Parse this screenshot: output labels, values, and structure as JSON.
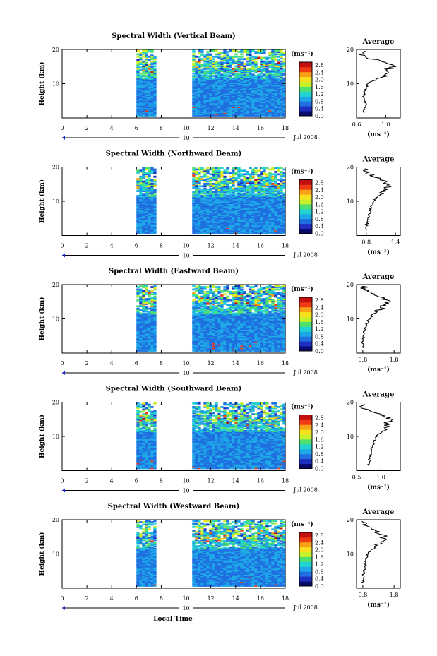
{
  "xlabel": "Local Time",
  "date_label": "Jul 2008",
  "day_label": "10",
  "x_ticks": [
    "0",
    "2",
    "4",
    "6",
    "8",
    "10",
    "12",
    "14",
    "16",
    "18"
  ],
  "y_ticks": [
    "10",
    "20"
  ],
  "ylabel": "Height (km)",
  "colorbar": {
    "unit": "(ms⁻¹)",
    "ticks": [
      "2.8",
      "2.4",
      "2.0",
      "1.6",
      "1.2",
      "0.8",
      "0.4",
      "0.0"
    ],
    "colors": [
      "#0a0a6e",
      "#1e2fbf",
      "#1f6fe0",
      "#1ea8e8",
      "#22d3d0",
      "#4fe070",
      "#c8f02a",
      "#f7e11e",
      "#f8a117",
      "#ee3b14",
      "#c40f0f"
    ]
  },
  "avg_title": "Average",
  "avg_xlabel": "(ms⁻¹)",
  "chart_data": [
    {
      "type": "heatmap",
      "title": "Spectral Width (Vertical Beam)",
      "xlim": [
        0,
        18
      ],
      "ylim": [
        0,
        20
      ],
      "data_segments": [
        [
          6.0,
          7.4
        ],
        [
          10.5,
          18.0
        ]
      ],
      "avg_profile": {
        "xlim": [
          0.6,
          1.2
        ],
        "ticks": [
          "0.6",
          "1.0"
        ],
        "heights": [
          2,
          4,
          6,
          8,
          10,
          11,
          12,
          13,
          14,
          15,
          16,
          17,
          18,
          19
        ],
        "values": [
          0.7,
          0.72,
          0.7,
          0.72,
          0.75,
          0.85,
          0.95,
          1.05,
          1.02,
          1.1,
          1.0,
          0.85,
          0.7,
          0.68
        ]
      }
    },
    {
      "type": "heatmap",
      "title": "Spectral Width (Northward Beam)",
      "xlim": [
        0,
        18
      ],
      "ylim": [
        0,
        20
      ],
      "data_segments": [
        [
          6.0,
          7.4
        ],
        [
          10.5,
          18.0
        ]
      ],
      "avg_profile": {
        "xlim": [
          0.6,
          1.5
        ],
        "ticks": [
          "0.8",
          "1.4"
        ],
        "heights": [
          2,
          4,
          6,
          8,
          10,
          11,
          12,
          13,
          14,
          15,
          16,
          17,
          18,
          19
        ],
        "values": [
          0.8,
          0.82,
          0.85,
          0.9,
          0.95,
          1.0,
          1.1,
          1.2,
          1.25,
          1.2,
          1.15,
          1.0,
          0.85,
          0.8
        ]
      }
    },
    {
      "type": "heatmap",
      "title": "Spectral Width (Eastward Beam)",
      "xlim": [
        0,
        18
      ],
      "ylim": [
        0,
        20
      ],
      "data_segments": [
        [
          6.0,
          7.4
        ],
        [
          10.5,
          18.0
        ]
      ],
      "avg_profile": {
        "xlim": [
          0.6,
          2.0
        ],
        "ticks": [
          "0.8",
          "1.8"
        ],
        "heights": [
          2,
          4,
          6,
          8,
          10,
          11,
          12,
          13,
          14,
          15,
          16,
          17,
          18,
          19
        ],
        "values": [
          0.8,
          0.82,
          0.85,
          0.9,
          1.0,
          1.1,
          1.25,
          1.4,
          1.5,
          1.6,
          1.4,
          1.2,
          1.0,
          0.85
        ]
      }
    },
    {
      "type": "heatmap",
      "title": "Spectral Width (Southward Beam)",
      "xlim": [
        0,
        18
      ],
      "ylim": [
        0,
        20
      ],
      "data_segments": [
        [
          6.0,
          7.4
        ],
        [
          10.5,
          18.0
        ]
      ],
      "avg_profile": {
        "xlim": [
          0.5,
          1.4
        ],
        "ticks": [
          "0.5",
          "1.0"
        ],
        "heights": [
          2,
          4,
          6,
          8,
          10,
          11,
          12,
          13,
          14,
          15,
          16,
          17,
          18,
          19
        ],
        "values": [
          0.75,
          0.78,
          0.8,
          0.85,
          0.9,
          1.0,
          1.1,
          1.15,
          1.1,
          1.2,
          1.05,
          0.9,
          0.7,
          0.6
        ]
      }
    },
    {
      "type": "heatmap",
      "title": "Spectral Width (Westward Beam)",
      "xlim": [
        0,
        18
      ],
      "ylim": [
        0,
        20
      ],
      "data_segments": [
        [
          6.0,
          7.4
        ],
        [
          10.5,
          18.0
        ]
      ],
      "avg_profile": {
        "xlim": [
          0.6,
          2.0
        ],
        "ticks": [
          "0.8",
          "1.8"
        ],
        "heights": [
          2,
          4,
          6,
          8,
          10,
          11,
          12,
          13,
          14,
          15,
          16,
          17,
          18,
          19
        ],
        "values": [
          0.8,
          0.82,
          0.85,
          0.9,
          0.95,
          1.05,
          1.2,
          1.35,
          1.45,
          1.5,
          1.3,
          1.15,
          0.95,
          0.85
        ]
      }
    }
  ]
}
